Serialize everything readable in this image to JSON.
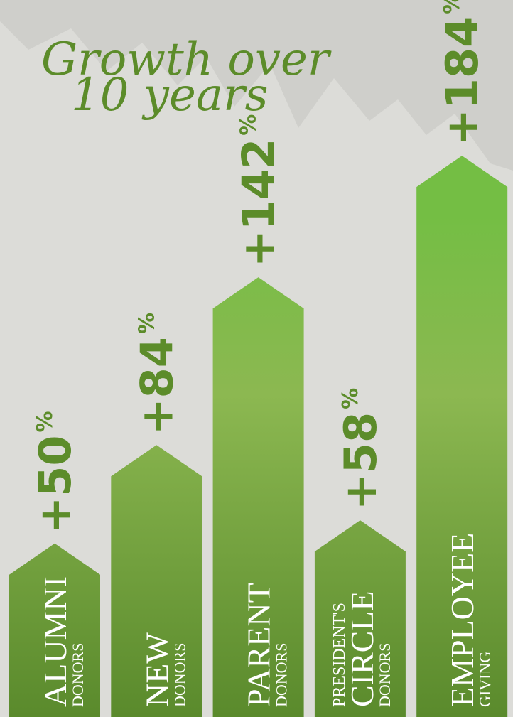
{
  "chart_data": {
    "type": "bar",
    "title": "Growth over 10 years",
    "categories": [
      "ALUMNI",
      "NEW",
      "PARENT",
      "PRESIDENT'S CIRCLE",
      "EMPLOYEE"
    ],
    "category_sublabels": [
      "DONORS",
      "DONORS",
      "DONORS",
      "DONORS",
      "GIVING"
    ],
    "values": [
      50,
      84,
      142,
      58,
      184
    ],
    "value_labels": [
      "+50%",
      "+84%",
      "+142%",
      "+58%",
      "+184%"
    ],
    "colors": [
      "#74be44",
      "#5a8a2c"
    ],
    "label_color": "#5c8c2a",
    "ylim": [
      -10,
      200
    ]
  }
}
